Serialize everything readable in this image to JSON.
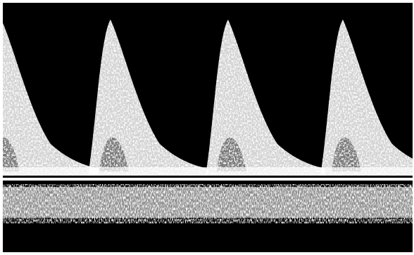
{
  "image": {
    "kind": "doppler-spectral-waveform",
    "palette": {
      "background": "#000000",
      "signal": "#ffffff",
      "frame": "#ffffff"
    },
    "waveform": {
      "cycles_visible": 4,
      "baseline_visible": true,
      "noise_band_below_baseline": true
    }
  }
}
